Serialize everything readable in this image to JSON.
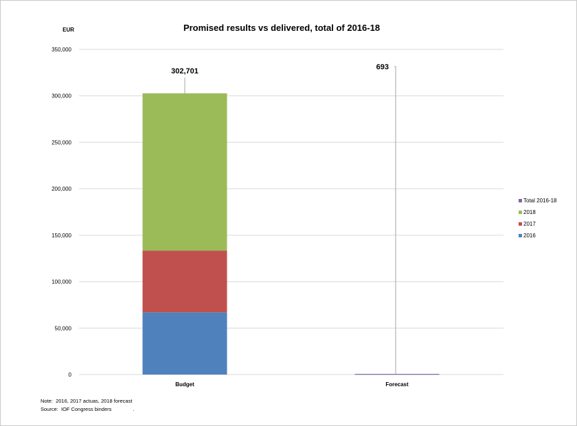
{
  "chart_data": {
    "type": "bar",
    "stacked": true,
    "title": "Promised results vs delivered, total of 2016-18",
    "ylabel": "EUR",
    "xlabel": "",
    "ylim": [
      0,
      350000
    ],
    "yticks": [
      0,
      50000,
      100000,
      150000,
      200000,
      250000,
      300000,
      350000
    ],
    "ytick_labels": [
      "0",
      "50,000",
      "100,000",
      "150,000",
      "200,000",
      "250,000",
      "300,000",
      "350,000"
    ],
    "grid": true,
    "legend_position": "right",
    "categories": [
      "Budget",
      "Forecast"
    ],
    "series": [
      {
        "name": "2016",
        "color": "#4f81bd",
        "values": [
          67000,
          0
        ]
      },
      {
        "name": "2017",
        "color": "#c0504d",
        "values": [
          66500,
          0
        ]
      },
      {
        "name": "2018",
        "color": "#9bbb59",
        "values": [
          169201,
          0
        ]
      },
      {
        "name": "Total 2016-18",
        "color": "#8064a2",
        "values": [
          0,
          693
        ]
      }
    ],
    "data_labels": [
      "302,701",
      "693"
    ],
    "legend_order": [
      "Total 2016-18",
      "2018",
      "2017",
      "2016"
    ]
  },
  "notes": {
    "note": "Note:  2016, 2017 actuas, 2018 forecast",
    "source": "Source:  IOF Congress binders               ."
  }
}
